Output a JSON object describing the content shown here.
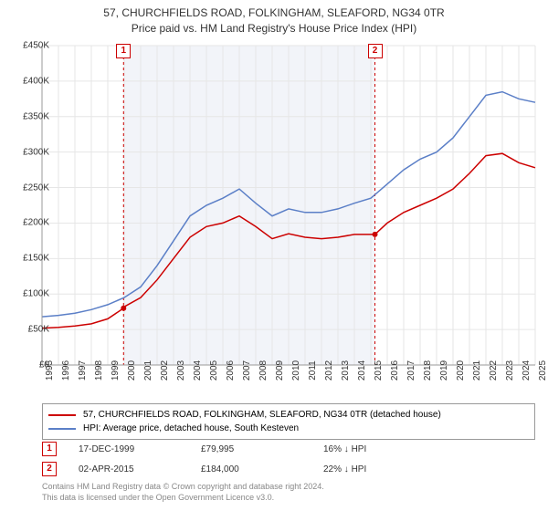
{
  "title": {
    "line1": "57, CHURCHFIELDS ROAD, FOLKINGHAM, SLEAFORD, NG34 0TR",
    "line2": "Price paid vs. HM Land Registry's House Price Index (HPI)"
  },
  "chart": {
    "type": "line",
    "background_color": "#ffffff",
    "plot_band_color": "#f2f4f9",
    "grid_color": "#e6e6e6",
    "axis_color": "#999999",
    "ylim": [
      0,
      450000
    ],
    "ytick_step": 50000,
    "yticks": [
      "£0",
      "£50K",
      "£100K",
      "£150K",
      "£200K",
      "£250K",
      "£300K",
      "£350K",
      "£400K",
      "£450K"
    ],
    "xlim": [
      1995,
      2025
    ],
    "xticks": [
      1995,
      1996,
      1997,
      1998,
      1999,
      2000,
      2001,
      2002,
      2003,
      2004,
      2005,
      2006,
      2007,
      2008,
      2009,
      2010,
      2011,
      2012,
      2013,
      2014,
      2015,
      2016,
      2017,
      2018,
      2019,
      2020,
      2021,
      2022,
      2023,
      2024,
      2025
    ],
    "series": [
      {
        "name": "57, CHURCHFIELDS ROAD, FOLKINGHAM, SLEAFORD, NG34 0TR (detached house)",
        "color": "#cc0000",
        "line_width": 1.5,
        "values": [
          [
            1995,
            52000
          ],
          [
            1996,
            53000
          ],
          [
            1997,
            55000
          ],
          [
            1998,
            58000
          ],
          [
            1999,
            65000
          ],
          [
            1999.96,
            79995
          ],
          [
            2000,
            82000
          ],
          [
            2001,
            95000
          ],
          [
            2002,
            120000
          ],
          [
            2003,
            150000
          ],
          [
            2004,
            180000
          ],
          [
            2005,
            195000
          ],
          [
            2006,
            200000
          ],
          [
            2007,
            210000
          ],
          [
            2008,
            195000
          ],
          [
            2009,
            178000
          ],
          [
            2010,
            185000
          ],
          [
            2011,
            180000
          ],
          [
            2012,
            178000
          ],
          [
            2013,
            180000
          ],
          [
            2014,
            184000
          ],
          [
            2015.25,
            184000
          ],
          [
            2016,
            200000
          ],
          [
            2017,
            215000
          ],
          [
            2018,
            225000
          ],
          [
            2019,
            235000
          ],
          [
            2020,
            248000
          ],
          [
            2021,
            270000
          ],
          [
            2022,
            295000
          ],
          [
            2023,
            298000
          ],
          [
            2024,
            285000
          ],
          [
            2025,
            278000
          ]
        ]
      },
      {
        "name": "HPI: Average price, detached house, South Kesteven",
        "color": "#5b7fc7",
        "line_width": 1.5,
        "values": [
          [
            1995,
            68000
          ],
          [
            1996,
            70000
          ],
          [
            1997,
            73000
          ],
          [
            1998,
            78000
          ],
          [
            1999,
            85000
          ],
          [
            2000,
            95000
          ],
          [
            2001,
            110000
          ],
          [
            2002,
            140000
          ],
          [
            2003,
            175000
          ],
          [
            2004,
            210000
          ],
          [
            2005,
            225000
          ],
          [
            2006,
            235000
          ],
          [
            2007,
            248000
          ],
          [
            2008,
            228000
          ],
          [
            2009,
            210000
          ],
          [
            2010,
            220000
          ],
          [
            2011,
            215000
          ],
          [
            2012,
            215000
          ],
          [
            2013,
            220000
          ],
          [
            2014,
            228000
          ],
          [
            2015,
            235000
          ],
          [
            2016,
            255000
          ],
          [
            2017,
            275000
          ],
          [
            2018,
            290000
          ],
          [
            2019,
            300000
          ],
          [
            2020,
            320000
          ],
          [
            2021,
            350000
          ],
          [
            2022,
            380000
          ],
          [
            2023,
            385000
          ],
          [
            2024,
            375000
          ],
          [
            2025,
            370000
          ]
        ]
      }
    ],
    "markers": [
      {
        "label": "1",
        "x": 1999.96,
        "y": 79995,
        "line_color": "#cc0000"
      },
      {
        "label": "2",
        "x": 2015.25,
        "y": 184000,
        "line_color": "#cc0000"
      }
    ],
    "plot_bands": [
      {
        "from": 1999.96,
        "to": 2015.25
      }
    ]
  },
  "legend": {
    "items": [
      {
        "color": "#cc0000",
        "label": "57, CHURCHFIELDS ROAD, FOLKINGHAM, SLEAFORD, NG34 0TR (detached house)"
      },
      {
        "color": "#5b7fc7",
        "label": "HPI: Average price, detached house, South Kesteven"
      }
    ]
  },
  "data_rows": [
    {
      "marker": "1",
      "date": "17-DEC-1999",
      "price": "£79,995",
      "delta": "16% ↓ HPI"
    },
    {
      "marker": "2",
      "date": "02-APR-2015",
      "price": "£184,000",
      "delta": "22% ↓ HPI"
    }
  ],
  "footer": {
    "line1": "Contains HM Land Registry data © Crown copyright and database right 2024.",
    "line2": "This data is licensed under the Open Government Licence v3.0."
  }
}
